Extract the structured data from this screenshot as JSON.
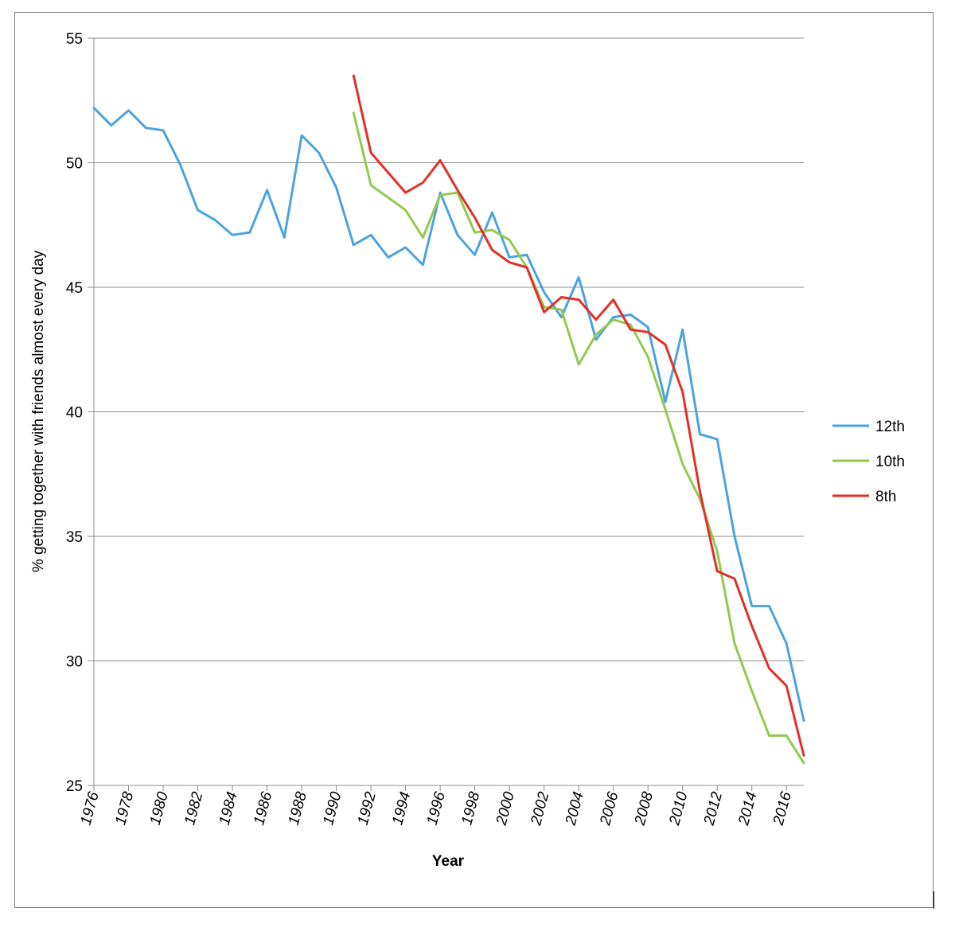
{
  "chart_data": {
    "type": "line",
    "title": "",
    "xlabel": "Year",
    "ylabel": "% getting together with friends almost every day",
    "xlim": [
      1976,
      2017
    ],
    "ylim": [
      25,
      55
    ],
    "yticks": [
      25,
      30,
      35,
      40,
      45,
      50,
      55
    ],
    "xticks": [
      1976,
      1978,
      1980,
      1982,
      1984,
      1986,
      1988,
      1990,
      1992,
      1994,
      1996,
      1998,
      2000,
      2002,
      2004,
      2006,
      2008,
      2010,
      2012,
      2014,
      2016
    ],
    "grid": "horizontal",
    "legend_position": "right",
    "series": [
      {
        "name": "12th",
        "color": "#4aa3df",
        "x": [
          1976,
          1977,
          1978,
          1979,
          1980,
          1981,
          1982,
          1983,
          1984,
          1985,
          1986,
          1987,
          1988,
          1989,
          1990,
          1991,
          1992,
          1993,
          1994,
          1995,
          1996,
          1997,
          1998,
          1999,
          2000,
          2001,
          2002,
          2003,
          2004,
          2005,
          2006,
          2007,
          2008,
          2009,
          2010,
          2011,
          2012,
          2013,
          2014,
          2015,
          2016,
          2017
        ],
        "values": [
          52.2,
          51.5,
          52.1,
          51.4,
          51.3,
          49.9,
          48.1,
          47.7,
          47.1,
          47.2,
          48.9,
          47.0,
          51.1,
          50.4,
          49.0,
          46.7,
          47.1,
          46.2,
          46.6,
          45.9,
          48.8,
          47.1,
          46.3,
          48.0,
          46.2,
          46.3,
          44.8,
          43.8,
          45.4,
          42.9,
          43.8,
          43.9,
          43.4,
          40.4,
          43.3,
          39.1,
          38.9,
          35.0,
          32.2,
          32.2,
          30.7,
          27.6
        ]
      },
      {
        "name": "10th",
        "color": "#92c94f",
        "x": [
          1991,
          1992,
          1993,
          1994,
          1995,
          1996,
          1997,
          1998,
          1999,
          2000,
          2001,
          2002,
          2003,
          2004,
          2005,
          2006,
          2007,
          2008,
          2009,
          2010,
          2011,
          2012,
          2013,
          2014,
          2015,
          2016,
          2017
        ],
        "values": [
          52.0,
          49.1,
          48.6,
          48.1,
          47.0,
          48.7,
          48.8,
          47.2,
          47.3,
          46.9,
          45.8,
          44.2,
          44.1,
          41.9,
          43.1,
          43.7,
          43.5,
          42.2,
          40.1,
          37.9,
          36.5,
          34.4,
          30.7,
          28.8,
          27.0,
          27.0,
          25.9
        ]
      },
      {
        "name": "8th",
        "color": "#e23026",
        "x": [
          1991,
          1992,
          1993,
          1994,
          1995,
          1996,
          1997,
          1998,
          1999,
          2000,
          2001,
          2002,
          2003,
          2004,
          2005,
          2006,
          2007,
          2008,
          2009,
          2010,
          2011,
          2012,
          2013,
          2014,
          2015,
          2016,
          2017
        ],
        "values": [
          53.5,
          50.4,
          49.6,
          48.8,
          49.2,
          50.1,
          48.9,
          47.8,
          46.5,
          46.0,
          45.8,
          44.0,
          44.6,
          44.5,
          43.7,
          44.5,
          43.3,
          43.2,
          42.7,
          40.8,
          36.8,
          33.6,
          33.3,
          31.4,
          29.7,
          29.0,
          26.2
        ]
      }
    ]
  }
}
